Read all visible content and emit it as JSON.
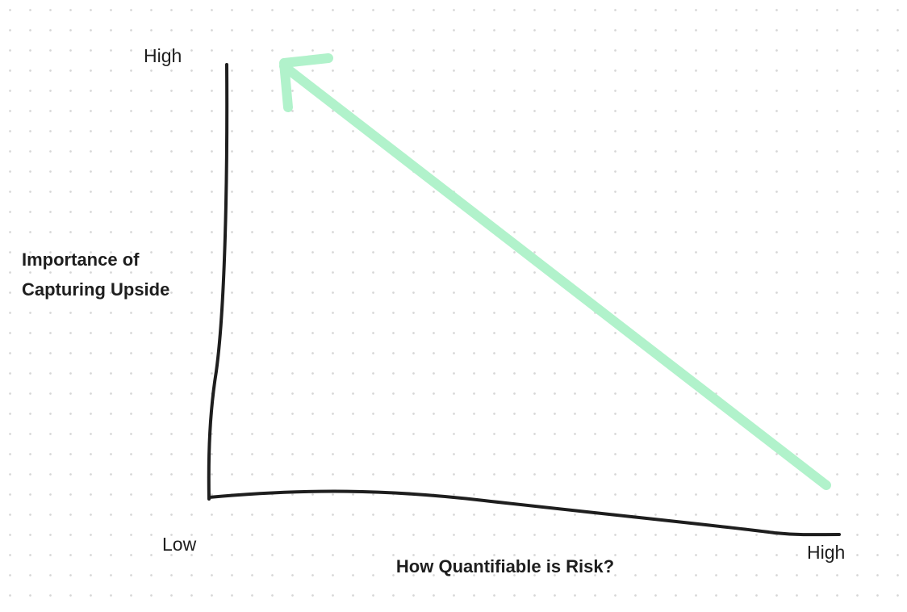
{
  "y_axis": {
    "high": "High",
    "label_lines": [
      "Importance of",
      "Capturing Upside"
    ]
  },
  "origin": {
    "low": "Low"
  },
  "x_axis": {
    "high": "High",
    "label": "How Quantifiable is Risk?"
  }
}
